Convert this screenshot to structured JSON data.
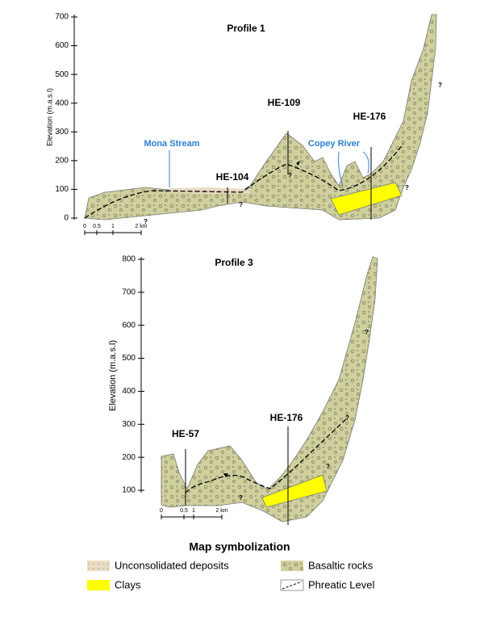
{
  "profile_1": {
    "title": "Profile 1",
    "y_axis_label": "Elevation (m.a.s.l)",
    "ylim": [
      0,
      700
    ],
    "yticks": [
      0,
      100,
      200,
      300,
      400,
      500,
      600,
      700
    ],
    "scale_labels": [
      "0",
      "0.5",
      "1",
      "2 km"
    ],
    "streams": [
      "Mona Stream",
      "Copey River"
    ],
    "wells": [
      "HE-104",
      "HE-109",
      "HE-176"
    ],
    "question_marks": [
      "?",
      "?",
      "?",
      "?",
      "?"
    ]
  },
  "profile_3": {
    "title": "Profile 3",
    "y_axis_label": "Elevation (m.a.s.l)",
    "ylim": [
      100,
      800
    ],
    "yticks": [
      100,
      200,
      300,
      400,
      500,
      600,
      700,
      800
    ],
    "scale_labels": [
      "0",
      "0.5",
      "1",
      "2 km"
    ],
    "wells": [
      "HE-57",
      "HE-176"
    ],
    "question_marks": [
      "?",
      "?",
      "?",
      "?"
    ]
  },
  "legend": {
    "title": "Map symbolization",
    "items": [
      "Unconsolidated deposits",
      "Clays",
      "Basaltic rocks",
      "Phreatic Level"
    ]
  }
}
